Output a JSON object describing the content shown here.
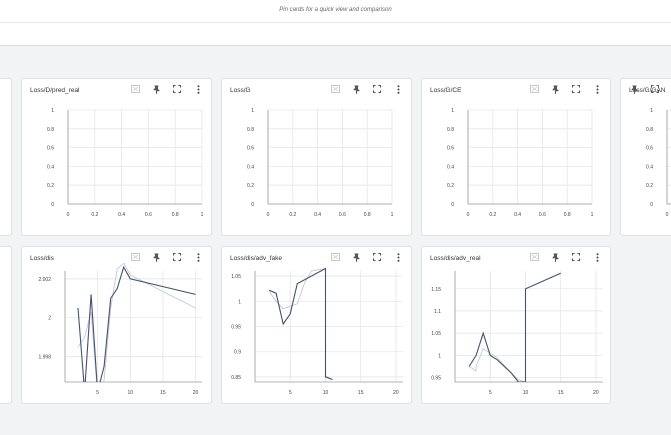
{
  "header": {
    "hint": "Pin cards for a quick view and comparison"
  },
  "icons": {
    "fit": "fit-domain-icon",
    "pin": "pin-icon",
    "fullscreen": "fullscreen-icon",
    "more": "more-vert-icon"
  },
  "colors": {
    "series_dark": "#455073",
    "series_light": "#c4c8cf",
    "grid": "#e6e6e6"
  },
  "cards": [
    {
      "title": "Loss/D/pred_real"
    },
    {
      "title": "Loss/G"
    },
    {
      "title": "Loss/G/CE"
    },
    {
      "title": "Loss/G/GAN"
    },
    {
      "title": "Loss/dis"
    },
    {
      "title": "Loss/dis/adv_fake"
    },
    {
      "title": "Loss/dis/adv_real"
    }
  ],
  "chart_data": [
    {
      "type": "line",
      "title": "Loss/D/pred_real",
      "y_ticks": [
        "1",
        "0.8",
        "0.6",
        "0.4",
        "0.2",
        "0"
      ],
      "x_ticks": [
        "0",
        "0.2",
        "0.4",
        "0.6",
        "0.8",
        "1"
      ],
      "xlim": [
        0,
        1
      ],
      "ylim": [
        0,
        1
      ],
      "series": []
    },
    {
      "type": "line",
      "title": "Loss/G",
      "y_ticks": [
        "1",
        "0.8",
        "0.6",
        "0.4",
        "0.2",
        "0"
      ],
      "x_ticks": [
        "0",
        "0.2",
        "0.4",
        "0.6",
        "0.8",
        "1"
      ],
      "xlim": [
        0,
        1
      ],
      "ylim": [
        0,
        1
      ],
      "series": []
    },
    {
      "type": "line",
      "title": "Loss/G/CE",
      "y_ticks": [
        "1",
        "0.8",
        "0.6",
        "0.4",
        "0.2",
        "0"
      ],
      "x_ticks": [
        "0",
        "0.2",
        "0.4",
        "0.6",
        "0.8",
        "1"
      ],
      "xlim": [
        0,
        1
      ],
      "ylim": [
        0,
        1
      ],
      "series": []
    },
    {
      "type": "line",
      "title": "Loss/G/GAN",
      "y_ticks": [
        "1",
        "0.8",
        "0.6",
        "0.4",
        "0.2",
        "0"
      ],
      "x_ticks": [
        "0"
      ],
      "xlim": [
        0,
        1
      ],
      "ylim": [
        0,
        1
      ],
      "series": []
    },
    {
      "type": "line",
      "title": "Loss/dis",
      "y_ticks": [
        "2.002",
        "2",
        "1.998"
      ],
      "x_ticks": [
        "5",
        "10",
        "15",
        "20"
      ],
      "xlim": [
        0,
        21
      ],
      "ylim": [
        1.9967,
        2.0024
      ],
      "series": [
        {
          "values": [
            [
              2,
              2.0005
            ],
            [
              3,
              1.9962
            ],
            [
              4,
              2.0012
            ],
            [
              5,
              1.9962
            ],
            [
              6,
              1.9975
            ],
            [
              7,
              2.001
            ],
            [
              8,
              2.0015
            ],
            [
              9,
              2.0026
            ],
            [
              10,
              2.002
            ],
            [
              20,
              2.0012
            ]
          ]
        },
        {
          "values": [
            [
              2,
              1.9985
            ],
            [
              3,
              1.999
            ],
            [
              4,
              2.0003
            ],
            [
              5,
              1.996
            ],
            [
              6,
              1.9968
            ],
            [
              7,
              2.0005
            ],
            [
              8,
              2.0025
            ],
            [
              9,
              2.0028
            ],
            [
              10,
              2.0022
            ],
            [
              20,
              2.0005
            ]
          ]
        }
      ]
    },
    {
      "type": "line",
      "title": "Loss/dis/adv_fake",
      "y_ticks": [
        "1.05",
        "1",
        "0.95",
        "0.9",
        "0.85"
      ],
      "x_ticks": [
        "5",
        "10",
        "15",
        "20"
      ],
      "xlim": [
        0,
        21
      ],
      "ylim": [
        0.84,
        1.06
      ],
      "series": [
        {
          "values": [
            [
              2,
              1.022
            ],
            [
              3,
              1.016
            ],
            [
              4,
              0.955
            ],
            [
              5,
              0.975
            ],
            [
              6,
              1.035
            ],
            [
              10,
              1.065
            ],
            [
              10,
              0.85
            ],
            [
              11,
              0.845
            ]
          ]
        },
        {
          "values": [
            [
              2,
              1.02
            ],
            [
              3,
              1.0
            ],
            [
              4,
              0.985
            ],
            [
              6,
              0.995
            ],
            [
              7,
              1.035
            ],
            [
              8,
              1.06
            ],
            [
              10,
              1.065
            ],
            [
              10,
              0.852
            ],
            [
              11,
              0.845
            ]
          ]
        }
      ]
    },
    {
      "type": "line",
      "title": "Loss/dis/adv_real",
      "y_ticks": [
        "1.15",
        "1.1",
        "1.05",
        "1",
        "0.95"
      ],
      "x_ticks": [
        "5",
        "10",
        "15",
        "20"
      ],
      "xlim": [
        0,
        21
      ],
      "ylim": [
        0.94,
        1.19
      ],
      "series": [
        {
          "values": [
            [
              2,
              0.975
            ],
            [
              3,
              1.0
            ],
            [
              4,
              1.05
            ],
            [
              5,
              1.0
            ],
            [
              6,
              0.99
            ],
            [
              8,
              0.96
            ],
            [
              9,
              0.94
            ],
            [
              10,
              0.94
            ],
            [
              10,
              1.15
            ],
            [
              15,
              1.185
            ]
          ]
        },
        {
          "values": [
            [
              2,
              0.975
            ],
            [
              3,
              0.965
            ],
            [
              3,
              0.975
            ],
            [
              4,
              1.015
            ],
            [
              5,
              1.005
            ],
            [
              6,
              0.995
            ],
            [
              8,
              0.96
            ],
            [
              9,
              0.945
            ],
            [
              10,
              0.94
            ],
            [
              10,
              1.15
            ],
            [
              15,
              1.185
            ]
          ]
        }
      ]
    }
  ]
}
